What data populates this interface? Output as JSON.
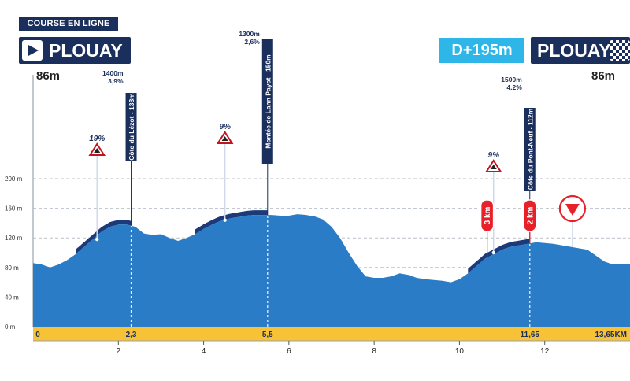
{
  "header": {
    "race_type": "COURSE EN LIGNE",
    "start_town": "PLOUAY",
    "finish_town": "PLOUAY",
    "elevation_gain": "D+195m",
    "start_altitude": "86m",
    "finish_altitude": "86m"
  },
  "colors": {
    "navy": "#1b2f5c",
    "profile_blue": "#2a7cc7",
    "climb_dark": "#1c3a7a",
    "accent_cyan": "#2fb6e8",
    "road_yellow": "#f7c235",
    "red": "#e8202a"
  },
  "chart_data": {
    "type": "area",
    "xlim": [
      0,
      14
    ],
    "ylim": [
      0,
      200
    ],
    "yticks": [
      0,
      40,
      80,
      120,
      160,
      200
    ],
    "ytick_labels": [
      "0 m",
      "40 m",
      "80 m",
      "120 m",
      "160 m",
      "200 m"
    ],
    "xticks": [
      2,
      4,
      6,
      8,
      10,
      12
    ],
    "xtick_labels": [
      "2",
      "4",
      "6",
      "8",
      "10",
      "12"
    ],
    "km_labels": [
      {
        "x": 0.1,
        "label": "0"
      },
      {
        "x": 2.3,
        "label": "2,3"
      },
      {
        "x": 5.5,
        "label": "5,5"
      },
      {
        "x": 11.65,
        "label": "11,65"
      },
      {
        "x": 13.65,
        "label": "13,65KM"
      }
    ],
    "profile": {
      "x": [
        0,
        0.2,
        0.4,
        0.6,
        0.8,
        1.0,
        1.2,
        1.4,
        1.6,
        1.8,
        2.0,
        2.2,
        2.4,
        2.6,
        2.8,
        3.0,
        3.2,
        3.4,
        3.6,
        3.8,
        4.0,
        4.2,
        4.4,
        4.6,
        4.8,
        5.0,
        5.2,
        5.4,
        5.6,
        5.8,
        6.0,
        6.2,
        6.4,
        6.6,
        6.8,
        7.0,
        7.2,
        7.4,
        7.6,
        7.8,
        8.0,
        8.2,
        8.4,
        8.6,
        8.8,
        9.0,
        9.2,
        9.4,
        9.6,
        9.8,
        10.0,
        10.2,
        10.4,
        10.6,
        10.8,
        11.0,
        11.2,
        11.4,
        11.6,
        11.8,
        12.0,
        12.2,
        12.4,
        12.6,
        12.8,
        13.0,
        13.2,
        13.4,
        13.6,
        13.8,
        14.0
      ],
      "y": [
        86,
        84,
        80,
        84,
        90,
        98,
        108,
        118,
        128,
        135,
        138,
        138,
        135,
        126,
        124,
        125,
        120,
        116,
        120,
        125,
        132,
        138,
        143,
        146,
        148,
        150,
        151,
        151,
        151,
        150,
        150,
        152,
        151,
        149,
        145,
        135,
        120,
        100,
        82,
        68,
        66,
        66,
        68,
        72,
        70,
        66,
        64,
        63,
        62,
        60,
        64,
        72,
        82,
        92,
        98,
        104,
        108,
        110,
        112,
        114,
        113,
        112,
        110,
        108,
        106,
        104,
        96,
        88,
        84,
        84,
        84
      ]
    },
    "climbs": [
      {
        "x_start": 1.0,
        "x_end": 2.3,
        "name": "Côte du Lézot - 138m",
        "length": "1400m",
        "gradient": "3,9%",
        "max_gradient": "19%",
        "max_x": 1.5,
        "max_y": 118
      },
      {
        "x_start": 3.8,
        "x_end": 5.5,
        "name": "Montée de Lann Payot - 150m",
        "length": "1300m",
        "gradient": "2,6%",
        "max_gradient": "9%",
        "max_x": 4.5,
        "max_y": 144
      },
      {
        "x_start": 10.2,
        "x_end": 11.65,
        "name": "Côte du Pont-Neuf - 112m",
        "length": "1500m",
        "gradient": "4.2%",
        "max_gradient": "9%",
        "max_x": 10.8,
        "max_y": 100
      }
    ],
    "distance_markers": [
      {
        "x": 10.65,
        "label": "3 km"
      },
      {
        "x": 11.65,
        "label": "2 km"
      }
    ],
    "flamme_rouge_x": 12.65
  }
}
